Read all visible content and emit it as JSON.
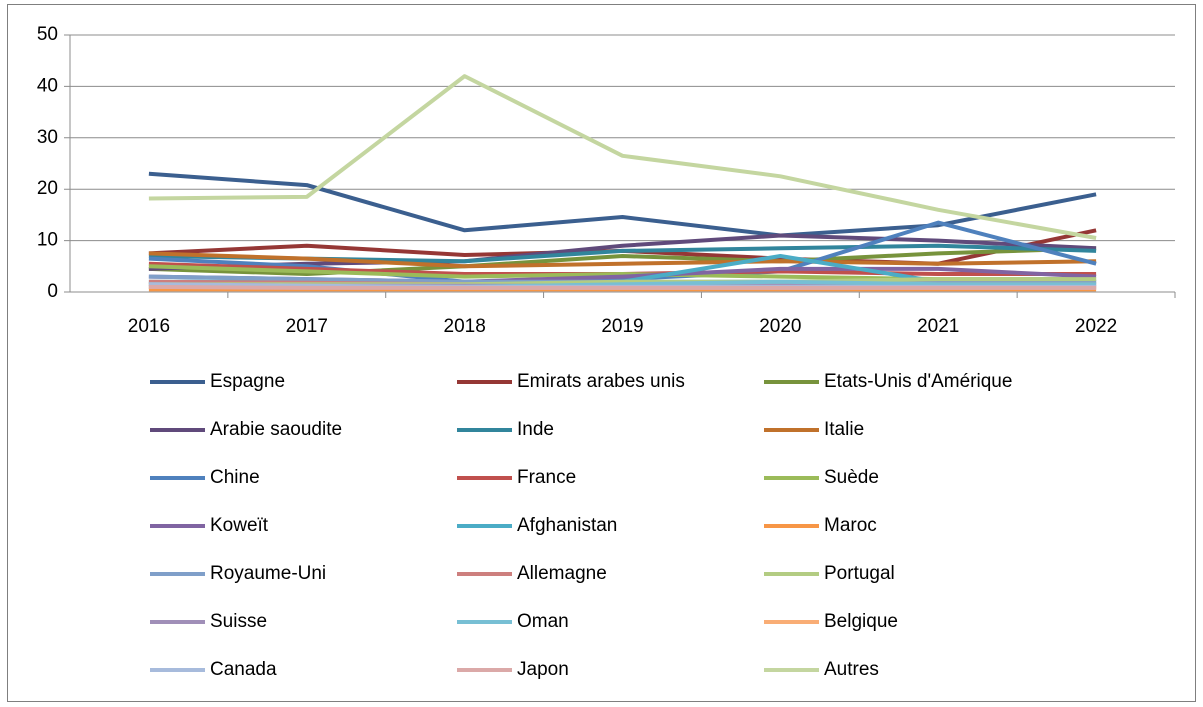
{
  "chart_data": {
    "type": "line",
    "categories": [
      "2016",
      "2017",
      "2018",
      "2019",
      "2020",
      "2021",
      "2022"
    ],
    "ylim": [
      0,
      50
    ],
    "yticks": [
      0,
      10,
      20,
      30,
      40,
      50
    ],
    "grid": true,
    "legend": "bottom",
    "series": [
      {
        "name": "Espagne",
        "color": "#3b5f8f",
        "values": [
          23,
          20.8,
          12,
          14.6,
          11,
          13,
          19
        ]
      },
      {
        "name": "Emirats arabes unis",
        "color": "#953735",
        "values": [
          7.5,
          9,
          7.2,
          8,
          6.5,
          5.5,
          12
        ]
      },
      {
        "name": "Etats-Unis d'Amérique",
        "color": "#77933c",
        "values": [
          4.5,
          3.5,
          5,
          7,
          6,
          7.5,
          8.5
        ]
      },
      {
        "name": "Arabie saoudite",
        "color": "#604a7b",
        "values": [
          4.5,
          5.5,
          6,
          9,
          11,
          10,
          8.5
        ]
      },
      {
        "name": "Inde",
        "color": "#31859c",
        "values": [
          7,
          6.5,
          6,
          8,
          8.5,
          9,
          8
        ]
      },
      {
        "name": "Italie",
        "color": "#c0712b",
        "values": [
          7.5,
          6.5,
          5,
          5.5,
          6,
          5.5,
          6
        ]
      },
      {
        "name": "Chine",
        "color": "#4f81bd",
        "values": [
          6.5,
          5,
          2,
          2.5,
          4,
          13.5,
          5.5
        ]
      },
      {
        "name": "France",
        "color": "#c0504d",
        "values": [
          5.5,
          4.5,
          3.5,
          3.5,
          4,
          3.5,
          3.5
        ]
      },
      {
        "name": "Suède",
        "color": "#9bbb59",
        "values": [
          5,
          4,
          3,
          3.5,
          3,
          2.5,
          2.5
        ]
      },
      {
        "name": "Koweït",
        "color": "#8064a2",
        "values": [
          3,
          2.5,
          2,
          3,
          4.5,
          4.5,
          3
        ]
      },
      {
        "name": "Afghanistan",
        "color": "#4bacc6",
        "values": [
          2,
          2,
          1.5,
          2,
          7,
          2,
          2
        ]
      },
      {
        "name": "Maroc",
        "color": "#f79646",
        "values": [
          0.5,
          0.5,
          0.5,
          0.5,
          0.5,
          0.5,
          0.5
        ]
      },
      {
        "name": "Royaume-Uni",
        "color": "#7f9fc9",
        "values": [
          3,
          2.5,
          2,
          2,
          2,
          2,
          2
        ]
      },
      {
        "name": "Allemagne",
        "color": "#cd7f7e",
        "values": [
          2,
          1.8,
          1.5,
          1.5,
          1.5,
          1.5,
          1.5
        ]
      },
      {
        "name": "Portugal",
        "color": "#b3cc82",
        "values": [
          1.5,
          1.5,
          1.5,
          2,
          2,
          2.5,
          2.5
        ]
      },
      {
        "name": "Suisse",
        "color": "#a08fb8",
        "values": [
          1.5,
          1.2,
          1.2,
          1.2,
          1.2,
          1.2,
          1.2
        ]
      },
      {
        "name": "Oman",
        "color": "#77bfd4",
        "values": [
          1,
          1,
          1,
          1.5,
          2,
          1.5,
          1.5
        ]
      },
      {
        "name": "Belgique",
        "color": "#f9ad75",
        "values": [
          1,
          1,
          0.8,
          0.8,
          0.8,
          0.8,
          0.8
        ]
      },
      {
        "name": "Canada",
        "color": "#a7bbdc",
        "values": [
          1.5,
          1.2,
          1,
          1,
          1,
          1,
          1
        ]
      },
      {
        "name": "Japon",
        "color": "#dba9a8",
        "values": [
          1,
          0.8,
          0.8,
          0.8,
          0.8,
          0.8,
          0.8
        ]
      },
      {
        "name": "Autres",
        "color": "#c4d6a0",
        "values": [
          18.2,
          18.5,
          42,
          26.5,
          22.5,
          16,
          10.5
        ]
      }
    ]
  }
}
